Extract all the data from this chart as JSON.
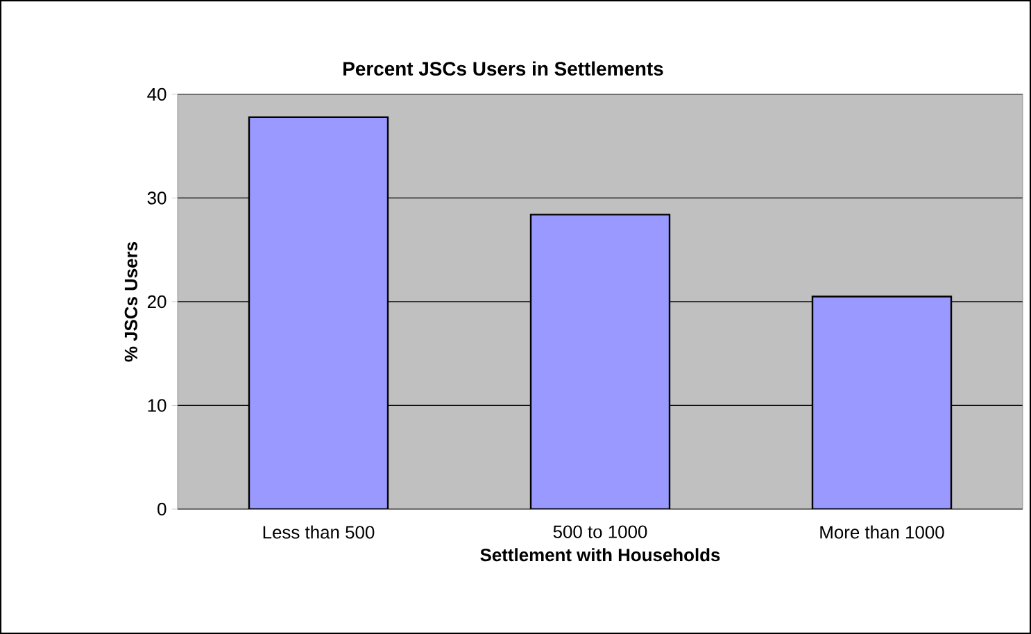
{
  "chart_data": {
    "type": "bar",
    "title": "Percent JSCs Users in Settlements",
    "xlabel": "Settlement with Households",
    "ylabel": "% JSCs Users",
    "categories": [
      "Less than 500",
      "500 to 1000",
      "More than 1000"
    ],
    "values": [
      37.8,
      28.4,
      20.5
    ],
    "color": "#9999ff",
    "ylim": [
      0,
      40
    ],
    "yticks": [
      0,
      10,
      20,
      30,
      40
    ],
    "grid": "y"
  }
}
